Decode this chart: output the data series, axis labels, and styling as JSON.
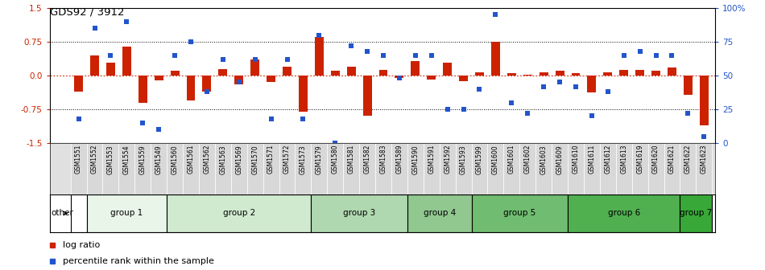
{
  "title": "GDS92 / 3912",
  "samples": [
    "GSM1551",
    "GSM1552",
    "GSM1553",
    "GSM1554",
    "GSM1559",
    "GSM1549",
    "GSM1560",
    "GSM1561",
    "GSM1562",
    "GSM1563",
    "GSM1569",
    "GSM1570",
    "GSM1571",
    "GSM1572",
    "GSM1573",
    "GSM1579",
    "GSM1580",
    "GSM1581",
    "GSM1582",
    "GSM1583",
    "GSM1589",
    "GSM1590",
    "GSM1591",
    "GSM1592",
    "GSM1593",
    "GSM1599",
    "GSM1600",
    "GSM1601",
    "GSM1602",
    "GSM1603",
    "GSM1609",
    "GSM1610",
    "GSM1611",
    "GSM1612",
    "GSM1613",
    "GSM1619",
    "GSM1620",
    "GSM1621",
    "GSM1622",
    "GSM1623"
  ],
  "log_ratio": [
    -0.35,
    0.45,
    0.28,
    0.65,
    -0.6,
    -0.1,
    0.1,
    -0.55,
    -0.35,
    0.15,
    -0.2,
    0.35,
    -0.15,
    0.2,
    -0.8,
    0.85,
    0.1,
    0.2,
    -0.9,
    0.12,
    -0.05,
    0.32,
    -0.08,
    0.28,
    -0.12,
    0.08,
    0.75,
    0.05,
    0.02,
    0.08,
    0.1,
    0.05,
    -0.38,
    0.08,
    0.12,
    0.12,
    0.1,
    0.18,
    -0.42,
    -1.1
  ],
  "percentile": [
    18,
    85,
    65,
    90,
    15,
    10,
    65,
    75,
    38,
    62,
    45,
    62,
    18,
    62,
    18,
    80,
    0,
    72,
    68,
    65,
    48,
    65,
    65,
    25,
    25,
    40,
    95,
    30,
    22,
    42,
    45,
    42,
    20,
    38,
    65,
    68,
    65,
    65,
    22,
    5
  ],
  "bar_color": "#cc2200",
  "dot_color": "#2255cc",
  "group_spans": [
    [
      "other",
      -0.5,
      0.5,
      "#ffffff"
    ],
    [
      "group 1",
      0.5,
      5.5,
      "#e8f5e8"
    ],
    [
      "group 2",
      5.5,
      14.5,
      "#d0ead0"
    ],
    [
      "group 3",
      14.5,
      20.5,
      "#b0d8b0"
    ],
    [
      "group 4",
      20.5,
      24.5,
      "#90c890"
    ],
    [
      "group 5",
      24.5,
      30.5,
      "#70bc70"
    ],
    [
      "group 6",
      30.5,
      37.5,
      "#50b050"
    ],
    [
      "group 7",
      37.5,
      39.5,
      "#38a838"
    ]
  ],
  "ylim_left": [
    -1.5,
    1.5
  ],
  "yticks_left": [
    -1.5,
    -0.75,
    0.0,
    0.75,
    1.5
  ],
  "ylim_right": [
    0,
    100
  ],
  "yticks_right": [
    0,
    25,
    50,
    75,
    100
  ],
  "ytick_labels_right": [
    "0",
    "25",
    "50",
    "75",
    "100%"
  ],
  "hlines_black": [
    -0.75,
    0.75
  ],
  "hline_red": 0.0
}
